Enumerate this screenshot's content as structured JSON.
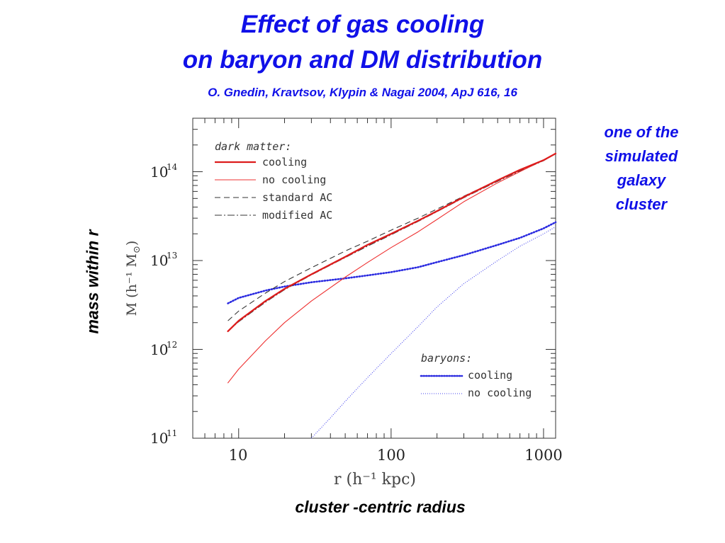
{
  "slide": {
    "title_line1": "Effect of gas cooling",
    "title_line2": "on baryon and DM distribution",
    "citation": "O. Gnedin, Kravtsov, Klypin & Nagai 2004, ApJ 616, 16",
    "note_lines": [
      "one of the",
      "simulated",
      "galaxy",
      "cluster"
    ],
    "y_caption": "mass within r",
    "x_caption": "cluster -centric radius"
  },
  "chart_data": {
    "type": "line",
    "xscale": "log",
    "yscale": "log",
    "xlim": [
      5,
      1200
    ],
    "ylim": [
      100000000000,
      400000000000000
    ],
    "xticks": [
      10,
      100,
      1000
    ],
    "xtick_labels": [
      "10",
      "100",
      "1000"
    ],
    "yticks": [
      100000000000,
      1000000000000,
      10000000000000,
      100000000000000
    ],
    "ytick_base": "10",
    "ytick_exponents": [
      "11",
      "12",
      "13",
      "14"
    ],
    "xlabel": "r  (h⁻¹ kpc)",
    "ylabel_main": "M  (h⁻¹ M",
    "ylabel_sub": "⊙",
    "ylabel_close": ")",
    "legend_dm_title": "dark matter:",
    "legend_baryon_title": "baryons:",
    "series": [
      {
        "name": "cooling",
        "group": "dark matter",
        "color": "#dd1c1c",
        "style": "solid-thick",
        "x": [
          8.5,
          10,
          15,
          20,
          30,
          50,
          70,
          100,
          150,
          200,
          300,
          500,
          700,
          1000,
          1200
        ],
        "y": [
          1600000000000.0,
          2100000000000.0,
          3500000000000.0,
          4800000000000.0,
          7000000000000.0,
          11000000000000.0,
          15000000000000.0,
          20000000000000.0,
          28000000000000.0,
          36000000000000.0,
          52000000000000.0,
          80000000000000.0,
          105000000000000.0,
          135000000000000.0,
          160000000000000.0
        ]
      },
      {
        "name": "no cooling",
        "group": "dark matter",
        "color": "#ee3030",
        "style": "solid-thin",
        "x": [
          8.5,
          10,
          15,
          20,
          30,
          50,
          70,
          100,
          150,
          200,
          300,
          500,
          700,
          1000,
          1200
        ],
        "y": [
          420000000000.0,
          600000000000.0,
          1250000000000.0,
          2000000000000.0,
          3500000000000.0,
          6500000000000.0,
          9500000000000.0,
          14000000000000.0,
          21000000000000.0,
          29000000000000.0,
          46000000000000.0,
          75000000000000.0,
          100000000000000.0,
          135000000000000.0,
          160000000000000.0
        ]
      },
      {
        "name": "standard AC",
        "group": "dark matter",
        "color": "#333333",
        "style": "dashed",
        "x": [
          8.5,
          10,
          15,
          20,
          30,
          50,
          70,
          100,
          150,
          200,
          300,
          500,
          700,
          1000,
          1200
        ],
        "y": [
          2100000000000.0,
          2700000000000.0,
          4300000000000.0,
          5800000000000.0,
          8300000000000.0,
          12800000000000.0,
          16500000000000.0,
          22000000000000.0,
          30000000000000.0,
          38000000000000.0,
          53000000000000.0,
          80000000000000.0,
          104000000000000.0,
          135000000000000.0,
          160000000000000.0
        ]
      },
      {
        "name": "modified AC",
        "group": "dark matter",
        "color": "#333333",
        "style": "dashdot",
        "x": [
          8.5,
          10,
          15,
          20,
          30,
          50,
          70,
          100,
          150,
          200,
          300,
          500,
          700,
          1000,
          1200
        ],
        "y": [
          1600000000000.0,
          2050000000000.0,
          3400000000000.0,
          4700000000000.0,
          6900000000000.0,
          10800000000000.0,
          14500000000000.0,
          19500000000000.0,
          27500000000000.0,
          35500000000000.0,
          51000000000000.0,
          78000000000000.0,
          102000000000000.0,
          133000000000000.0,
          160000000000000.0
        ]
      },
      {
        "name": "cooling",
        "group": "baryons",
        "color": "#2a2ae0",
        "style": "dotted-thick",
        "x": [
          8.5,
          10,
          15,
          20,
          30,
          50,
          70,
          100,
          150,
          200,
          300,
          500,
          700,
          1000,
          1200
        ],
        "y": [
          3300000000000.0,
          3800000000000.0,
          4600000000000.0,
          5100000000000.0,
          5700000000000.0,
          6300000000000.0,
          6800000000000.0,
          7400000000000.0,
          8400000000000.0,
          9600000000000.0,
          11500000000000.0,
          15000000000000.0,
          18000000000000.0,
          23000000000000.0,
          27000000000000.0
        ]
      },
      {
        "name": "no cooling",
        "group": "baryons",
        "color": "#4444ee",
        "style": "dotted-thin",
        "x": [
          30,
          40,
          50,
          70,
          100,
          150,
          200,
          300,
          500,
          700,
          1000,
          1200
        ],
        "y": [
          100000000000.0,
          170000000000.0,
          260000000000.0,
          480000000000.0,
          900000000000.0,
          1800000000000.0,
          3000000000000.0,
          5500000000000.0,
          10000000000000.0,
          14500000000000.0,
          20000000000000.0,
          24000000000000.0
        ]
      }
    ],
    "grid": false
  }
}
